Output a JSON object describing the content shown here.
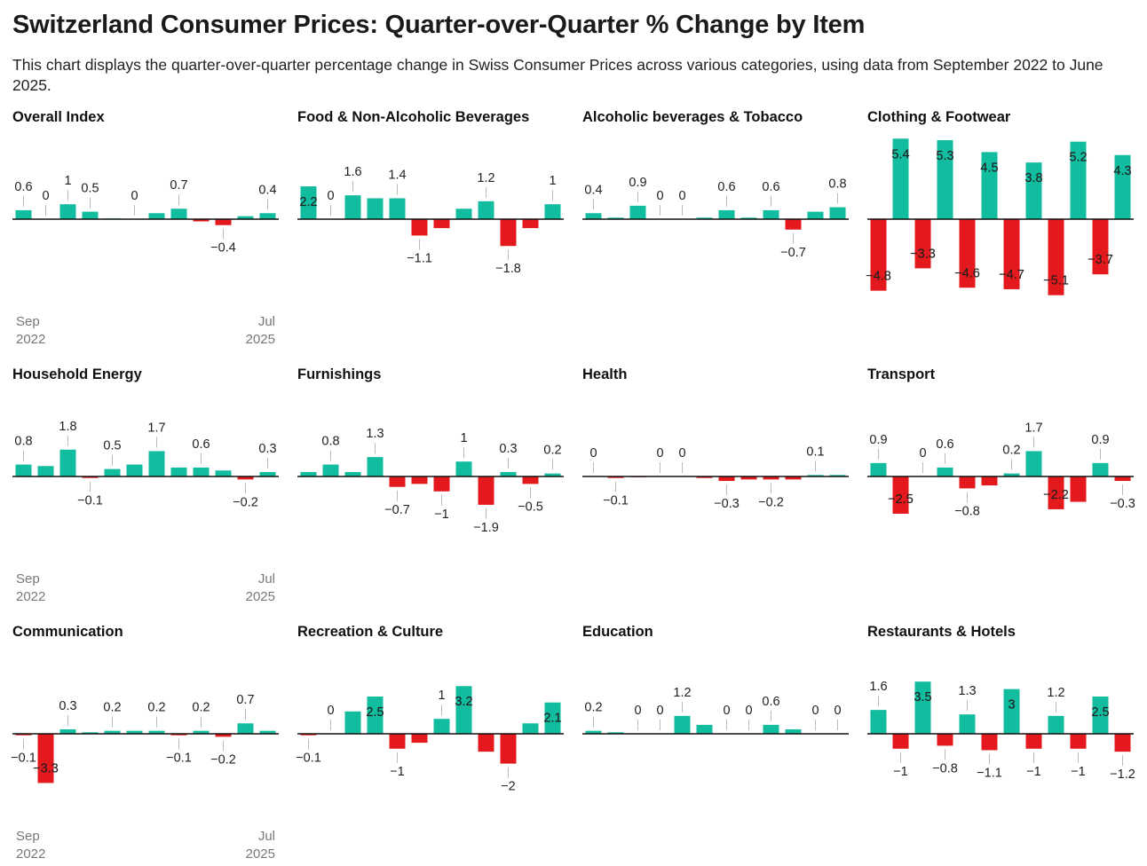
{
  "title": "Switzerland Consumer Prices: Quarter-over-Quarter % Change by Item",
  "subtitle": "This chart displays the quarter-over-quarter percentage change in Swiss Consumer Prices across various categories, using data from September 2022 to June 2025.",
  "colors": {
    "positive": "#12bc9f",
    "negative": "#e3191d",
    "axis": "#111111",
    "leader": "#bbbbbb"
  },
  "chart_data": [
    {
      "type": "bar",
      "title": "Overall Index",
      "values": [
        0.6,
        0,
        1,
        0.5,
        0.05,
        0,
        0.4,
        0.7,
        -0.15,
        -0.4,
        0.2,
        0.4
      ],
      "labels": [
        "0.6",
        "0",
        "1",
        "0.5",
        "",
        "0",
        "",
        "0.7",
        "",
        "−0.4",
        "",
        "0.4"
      ],
      "x_tick_first": [
        "Sep",
        "2022"
      ],
      "x_tick_last": [
        "Jul",
        "2025"
      ]
    },
    {
      "type": "bar",
      "title": "Food & Non-Alcoholic Beverages",
      "values": [
        2.2,
        0,
        1.6,
        1.4,
        1.4,
        -1.1,
        -0.6,
        0.7,
        1.2,
        -1.8,
        -0.6,
        1
      ],
      "labels": [
        "2.2",
        "0",
        "1.6",
        "",
        "1.4",
        "−1.1",
        "",
        "",
        "1.2",
        "−1.8",
        "",
        "1"
      ],
      "x_tick_first": [],
      "x_tick_last": []
    },
    {
      "type": "bar",
      "title": "Alcoholic beverages & Tobacco",
      "values": [
        0.4,
        0.1,
        0.9,
        0,
        0,
        0.1,
        0.6,
        0.1,
        0.6,
        -0.7,
        0.5,
        0.8
      ],
      "labels": [
        "0.4",
        "",
        "0.9",
        "0",
        "0",
        "",
        "0.6",
        "",
        "0.6",
        "−0.7",
        "",
        "0.8"
      ],
      "x_tick_first": [],
      "x_tick_last": []
    },
    {
      "type": "bar",
      "title": "Clothing & Footwear",
      "values": [
        -4.8,
        5.4,
        -3.3,
        5.3,
        -4.6,
        4.5,
        -4.7,
        3.8,
        -5.1,
        5.2,
        -3.7,
        4.3
      ],
      "labels": [
        "−4.8",
        "5.4",
        "−3.3",
        "5.3",
        "−4.6",
        "4.5",
        "−4.7",
        "3.8",
        "−5.1",
        "5.2",
        "−3.7",
        "4.3"
      ],
      "x_tick_first": [],
      "x_tick_last": []
    },
    {
      "type": "bar",
      "title": "Household Energy",
      "values": [
        0.8,
        0.7,
        1.8,
        -0.1,
        0.5,
        0.8,
        1.7,
        0.6,
        0.6,
        0.4,
        -0.2,
        0.3
      ],
      "labels": [
        "0.8",
        "",
        "1.8",
        "−0.1",
        "0.5",
        "",
        "1.7",
        "",
        "0.6",
        "",
        "−0.2",
        "0.3"
      ],
      "x_tick_first": [
        "Sep",
        "2022"
      ],
      "x_tick_last": [
        "Jul",
        "2025"
      ]
    },
    {
      "type": "bar",
      "title": "Furnishings",
      "values": [
        0.3,
        0.8,
        0.3,
        1.3,
        -0.7,
        -0.5,
        -1,
        1,
        -1.9,
        0.3,
        -0.5,
        0.2
      ],
      "labels": [
        "",
        "0.8",
        "",
        "1.3",
        "−0.7",
        "",
        "−1",
        "1",
        "−1.9",
        "0.3",
        "−0.5",
        "0.2"
      ],
      "x_tick_first": [],
      "x_tick_last": []
    },
    {
      "type": "bar",
      "title": "Health",
      "values": [
        0,
        -0.1,
        -0.05,
        0,
        0,
        -0.1,
        -0.3,
        -0.2,
        -0.2,
        -0.2,
        0.1,
        0.1
      ],
      "labels": [
        "0",
        "−0.1",
        "",
        "0",
        "0",
        "",
        "−0.3",
        "",
        "−0.2",
        "",
        "0.1",
        ""
      ],
      "x_tick_first": [],
      "x_tick_last": []
    },
    {
      "type": "bar",
      "title": "Transport",
      "values": [
        0.9,
        -2.5,
        0,
        0.6,
        -0.8,
        -0.6,
        0.2,
        1.7,
        -2.2,
        -1.7,
        0.9,
        -0.3
      ],
      "labels": [
        "0.9",
        "−2.5",
        "0",
        "0.6",
        "−0.8",
        "",
        "0.2",
        "1.7",
        "−2.2",
        "",
        "0.9",
        "−0.3"
      ],
      "x_tick_first": [],
      "x_tick_last": []
    },
    {
      "type": "bar",
      "title": "Communication",
      "values": [
        -0.1,
        -3.3,
        0.3,
        0.1,
        0.2,
        0.2,
        0.2,
        -0.1,
        0.2,
        -0.2,
        0.7,
        0.2
      ],
      "labels": [
        "−0.1",
        "−3.3",
        "0.3",
        "",
        "0.2",
        "",
        "0.2",
        "−0.1",
        "0.2",
        "−0.2",
        "0.7",
        ""
      ],
      "x_tick_first": [
        "Sep",
        "2022"
      ],
      "x_tick_last": [
        "Jul",
        "2025"
      ]
    },
    {
      "type": "bar",
      "title": "Recreation & Culture",
      "values": [
        -0.1,
        0,
        1.5,
        2.5,
        -1,
        -0.6,
        1,
        3.2,
        -1.2,
        -2,
        0.7,
        2.1
      ],
      "labels": [
        "−0.1",
        "0",
        "",
        "2.5",
        "−1",
        "",
        "1",
        "3.2",
        "",
        "−2",
        "",
        "2.1"
      ],
      "x_tick_first": [],
      "x_tick_last": []
    },
    {
      "type": "bar",
      "title": "Education",
      "values": [
        0.2,
        0.1,
        0,
        0,
        1.2,
        0.6,
        0,
        0,
        0.6,
        0.3,
        0,
        0
      ],
      "labels": [
        "0.2",
        "",
        "0",
        "0",
        "1.2",
        "",
        "0",
        "0",
        "0.6",
        "",
        "0",
        "0"
      ],
      "x_tick_first": [],
      "x_tick_last": []
    },
    {
      "type": "bar",
      "title": "Restaurants & Hotels",
      "values": [
        1.6,
        -1,
        3.5,
        -0.8,
        1.3,
        -1.1,
        3,
        -1,
        1.2,
        -1,
        2.5,
        -1.2
      ],
      "labels": [
        "1.6",
        "−1",
        "3.5",
        "−0.8",
        "1.3",
        "−1.1",
        "3",
        "−1",
        "1.2",
        "−1",
        "2.5",
        "−1.2"
      ],
      "x_tick_first": [],
      "x_tick_last": []
    }
  ]
}
